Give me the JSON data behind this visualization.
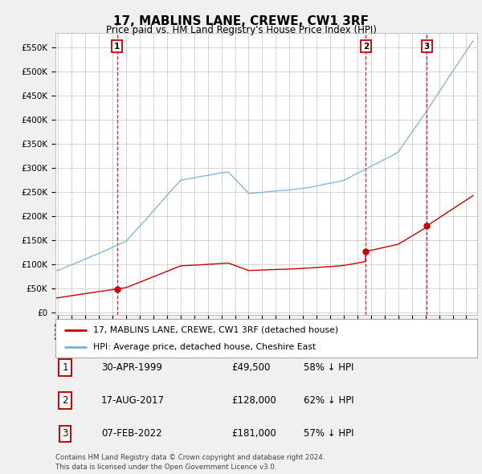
{
  "title": "17, MABLINS LANE, CREWE, CW1 3RF",
  "subtitle": "Price paid vs. HM Land Registry's House Price Index (HPI)",
  "ylabel_vals": [
    0,
    50000,
    100000,
    150000,
    200000,
    250000,
    300000,
    350000,
    400000,
    450000,
    500000,
    550000
  ],
  "ylim": [
    -5000,
    580000
  ],
  "xlim_start": 1994.8,
  "xlim_end": 2025.8,
  "sale_dates": [
    1999.33,
    2017.62,
    2022.1
  ],
  "sale_prices": [
    49500,
    128000,
    181000
  ],
  "sale_labels": [
    "1",
    "2",
    "3"
  ],
  "sale_date_strs": [
    "30-APR-1999",
    "17-AUG-2017",
    "07-FEB-2022"
  ],
  "sale_price_strs": [
    "£49,500",
    "£128,000",
    "£181,000"
  ],
  "sale_hpi_strs": [
    "58% ↓ HPI",
    "62% ↓ HPI",
    "57% ↓ HPI"
  ],
  "red_color": "#cc0000",
  "blue_color": "#7bafd4",
  "legend_label_red": "17, MABLINS LANE, CREWE, CW1 3RF (detached house)",
  "legend_label_blue": "HPI: Average price, detached house, Cheshire East",
  "footer_line1": "Contains HM Land Registry data © Crown copyright and database right 2024.",
  "footer_line2": "This data is licensed under the Open Government Licence v3.0.",
  "bg_color": "#f0f0f0",
  "plot_bg_color": "#ffffff",
  "grid_color": "#cccccc"
}
